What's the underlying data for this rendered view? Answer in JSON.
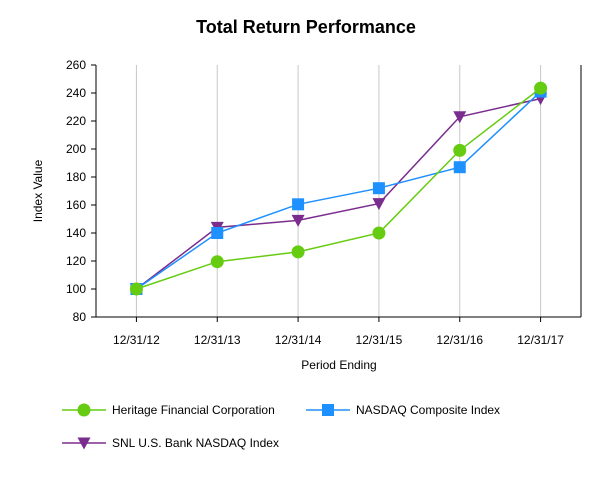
{
  "chart_data": {
    "type": "line",
    "title": "Total Return Performance",
    "xlabel": "Period Ending",
    "ylabel": "Index Value",
    "categories": [
      "12/31/12",
      "12/31/13",
      "12/31/14",
      "12/31/15",
      "12/31/16",
      "12/31/17"
    ],
    "ylim": [
      80,
      260
    ],
    "yticks": [
      80,
      100,
      120,
      140,
      160,
      180,
      200,
      220,
      240,
      260
    ],
    "grid": "vertical",
    "legend_position": "bottom",
    "series": [
      {
        "name": "Heritage Financial Corporation",
        "values": [
          100,
          119.5,
          126.5,
          140,
          199,
          243.5
        ],
        "color": "#66cc11",
        "marker": "circle"
      },
      {
        "name": "NASDAQ Composite Index",
        "values": [
          100,
          140,
          160.5,
          172,
          187,
          241
        ],
        "color": "#1e90ff",
        "marker": "square"
      },
      {
        "name": "SNL U.S. Bank NASDAQ Index",
        "values": [
          100,
          144,
          149,
          161,
          223,
          236
        ],
        "color": "#7b2d8e",
        "marker": "triangle-down"
      }
    ]
  }
}
